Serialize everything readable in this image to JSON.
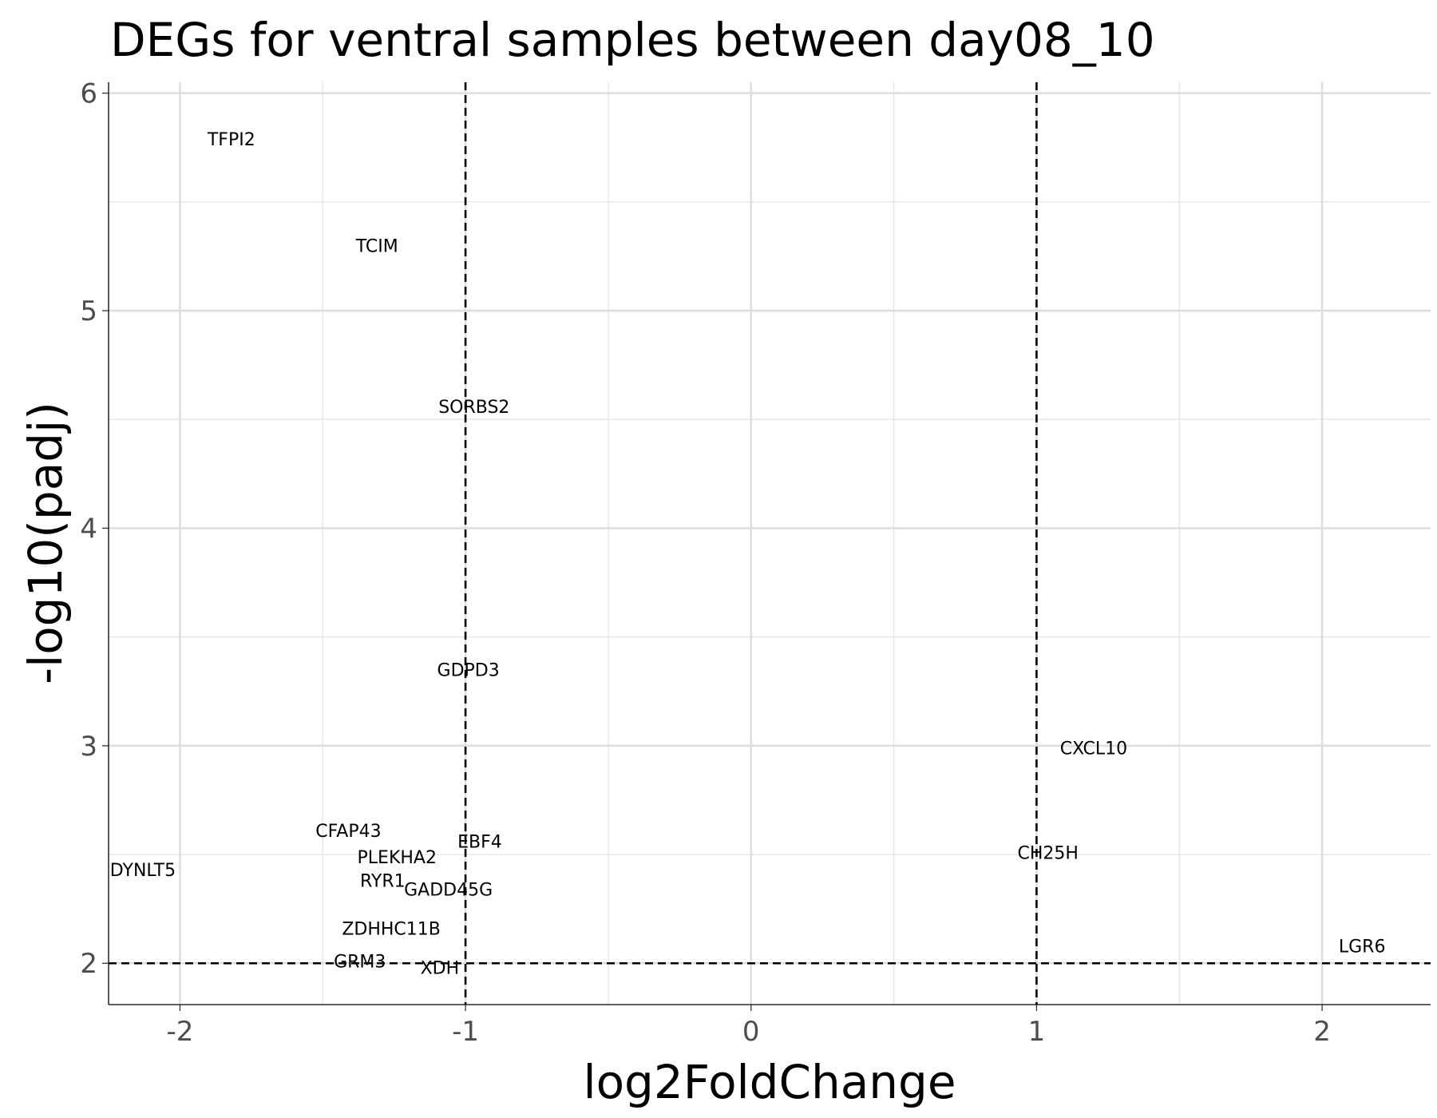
{
  "chart_data": {
    "type": "scatter",
    "title": "DEGs for ventral samples between day08_10",
    "xlabel": "log2FoldChange",
    "ylabel": "-log10(padj)",
    "xlim": [
      -2.25,
      2.38
    ],
    "ylim": [
      1.81,
      6.05
    ],
    "x_ticks": [
      {
        "value": -2,
        "label": "-2"
      },
      {
        "value": -1,
        "label": "-1"
      },
      {
        "value": 0,
        "label": "0"
      },
      {
        "value": 1,
        "label": "1"
      },
      {
        "value": 2,
        "label": "2"
      }
    ],
    "y_ticks": [
      {
        "value": 2,
        "label": "2"
      },
      {
        "value": 3,
        "label": "3"
      },
      {
        "value": 4,
        "label": "4"
      },
      {
        "value": 5,
        "label": "5"
      },
      {
        "value": 6,
        "label": "6"
      }
    ],
    "x_minor": [
      -1.5,
      -0.5,
      0.5,
      1.5
    ],
    "y_minor": [
      2.5,
      3.5,
      4.5,
      5.5
    ],
    "thresholds": {
      "x": [
        -1,
        1
      ],
      "y": [
        2
      ]
    },
    "grid": true,
    "points": [
      {
        "gene": "TFPI2",
        "x": -1.82,
        "y": 5.79
      },
      {
        "gene": "TCIM",
        "x": -1.31,
        "y": 5.3
      },
      {
        "gene": "SORBS2",
        "x": -0.97,
        "y": 4.56
      },
      {
        "gene": "GDPD3",
        "x": -0.99,
        "y": 3.35
      },
      {
        "gene": "CXCL10",
        "x": 1.2,
        "y": 2.99
      },
      {
        "gene": "CFAP43",
        "x": -1.41,
        "y": 2.61
      },
      {
        "gene": "EBF4",
        "x": -0.95,
        "y": 2.56
      },
      {
        "gene": "PLEKHA2",
        "x": -1.24,
        "y": 2.49
      },
      {
        "gene": "CH25H",
        "x": 1.04,
        "y": 2.51
      },
      {
        "gene": "DYNLT5",
        "x": -2.13,
        "y": 2.43
      },
      {
        "gene": "RYR1",
        "x": -1.29,
        "y": 2.38
      },
      {
        "gene": "GADD45G",
        "x": -1.06,
        "y": 2.34
      },
      {
        "gene": "ZDHHC11B",
        "x": -1.26,
        "y": 2.16
      },
      {
        "gene": "GRM3",
        "x": -1.37,
        "y": 2.01
      },
      {
        "gene": "XDH",
        "x": -1.09,
        "y": 1.98
      },
      {
        "gene": "LGR6",
        "x": 2.14,
        "y": 2.08
      }
    ]
  }
}
